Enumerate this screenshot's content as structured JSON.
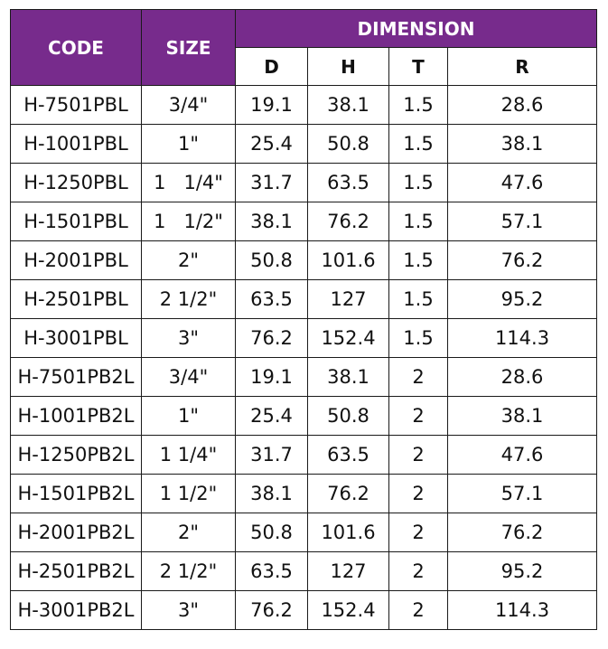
{
  "colors": {
    "header_bg": "#772b8c",
    "header_text": "#ffffff",
    "border": "#1a1a1a"
  },
  "header": {
    "code": "CODE",
    "size": "SIZE",
    "dimension": "DIMENSION",
    "sub": [
      "D",
      "H",
      "T",
      "R"
    ]
  },
  "rows": [
    {
      "code": "H-7501PBL",
      "size": "3/4\"",
      "d": "19.1",
      "h": "38.1",
      "t": "1.5",
      "r": "28.6"
    },
    {
      "code": "H-1001PBL",
      "size": "1\"",
      "d": "25.4",
      "h": "50.8",
      "t": "1.5",
      "r": "38.1"
    },
    {
      "code": "H-1250PBL",
      "size": "1   1/4\"",
      "d": "31.7",
      "h": "63.5",
      "t": "1.5",
      "r": "47.6"
    },
    {
      "code": "H-1501PBL",
      "size": "1   1/2\"",
      "d": "38.1",
      "h": "76.2",
      "t": "1.5",
      "r": "57.1"
    },
    {
      "code": "H-2001PBL",
      "size": "2\"",
      "d": "50.8",
      "h": "101.6",
      "t": "1.5",
      "r": "76.2"
    },
    {
      "code": "H-2501PBL",
      "size": "2 1/2\"",
      "d": "63.5",
      "h": "127",
      "t": "1.5",
      "r": "95.2"
    },
    {
      "code": "H-3001PBL",
      "size": "3\"",
      "d": "76.2",
      "h": "152.4",
      "t": "1.5",
      "r": "114.3"
    },
    {
      "code": "H-7501PB2L",
      "size": "3/4\"",
      "d": "19.1",
      "h": "38.1",
      "t": "2",
      "r": "28.6"
    },
    {
      "code": "H-1001PB2L",
      "size": "1\"",
      "d": "25.4",
      "h": "50.8",
      "t": "2",
      "r": "38.1"
    },
    {
      "code": "H-1250PB2L",
      "size": "1 1/4\"",
      "d": "31.7",
      "h": "63.5",
      "t": "2",
      "r": "47.6"
    },
    {
      "code": "H-1501PB2L",
      "size": "1 1/2\"",
      "d": "38.1",
      "h": "76.2",
      "t": "2",
      "r": "57.1"
    },
    {
      "code": "H-2001PB2L",
      "size": "2\"",
      "d": "50.8",
      "h": "101.6",
      "t": "2",
      "r": "76.2"
    },
    {
      "code": "H-2501PB2L",
      "size": "2 1/2\"",
      "d": "63.5",
      "h": "127",
      "t": "2",
      "r": "95.2"
    },
    {
      "code": "H-3001PB2L",
      "size": "3\"",
      "d": "76.2",
      "h": "152.4",
      "t": "2",
      "r": "114.3"
    }
  ]
}
